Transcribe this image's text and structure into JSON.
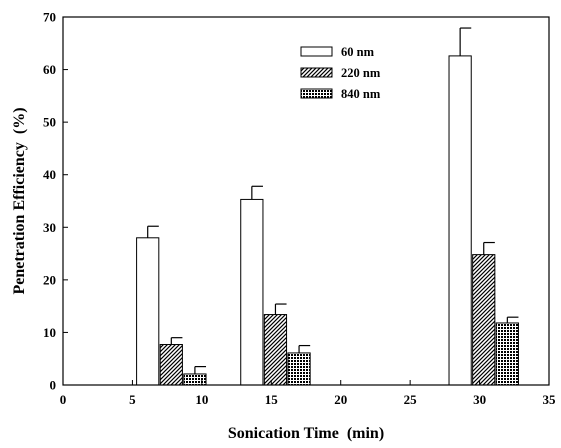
{
  "chart_data": {
    "type": "bar",
    "title": "",
    "xlabel": "Sonication Time  (min)",
    "ylabel": "Penetration Efficiency  (%)",
    "xlim": [
      0,
      35
    ],
    "ylim": [
      0,
      70
    ],
    "x_ticks": [
      0,
      5,
      10,
      15,
      20,
      25,
      30,
      35
    ],
    "y_ticks": [
      0,
      10,
      20,
      30,
      40,
      50,
      60,
      70
    ],
    "grid": false,
    "legend_position": "top-center",
    "categories": [
      5,
      15,
      30
    ],
    "bar_width": 1.6,
    "series": [
      {
        "name": "60 nm",
        "pattern": "open",
        "x": [
          6.1,
          13.6,
          28.6
        ],
        "values": [
          28.0,
          35.3,
          62.6
        ],
        "errors": [
          2.2,
          2.5,
          5.3
        ]
      },
      {
        "name": "220 nm",
        "pattern": "hatched",
        "x": [
          7.8,
          15.3,
          30.3
        ],
        "values": [
          7.7,
          13.4,
          24.8
        ],
        "errors": [
          1.3,
          2.0,
          2.3
        ]
      },
      {
        "name": "840 nm",
        "pattern": "crosshatch",
        "x": [
          9.5,
          17.0,
          32.0
        ],
        "values": [
          2.1,
          6.1,
          11.8
        ],
        "errors": [
          1.4,
          1.4,
          1.1
        ]
      }
    ],
    "colors": {
      "line": "#000000",
      "open_fill": "#ffffff"
    }
  }
}
